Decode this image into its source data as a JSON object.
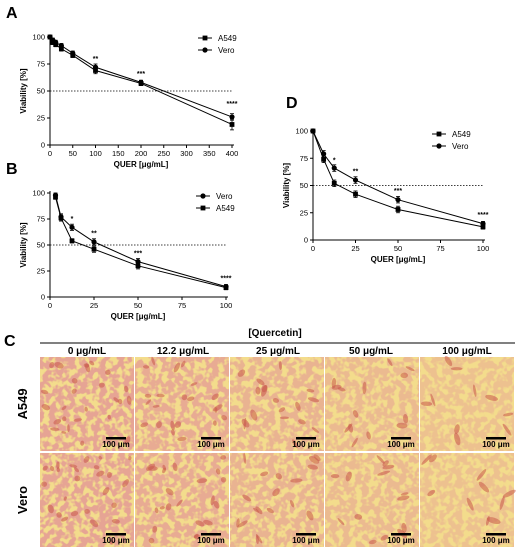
{
  "figure": {
    "panel_labels": [
      "A",
      "B",
      "C",
      "D"
    ],
    "quercetin_header": "[Quercetin]",
    "micrograph_columns": [
      "0 μg/mL",
      "12.2 μg/mL",
      "25 μg/mL",
      "50 μg/mL",
      "100 μg/mL"
    ],
    "micrograph_rows": [
      "A549",
      "Vero"
    ],
    "scale_bar_label": "100 μm"
  },
  "colors": {
    "series": "#000000",
    "cell_background": "#f3dc8c",
    "cell_stain": "#c8584b"
  },
  "chart_data": [
    {
      "panel": "A",
      "type": "line",
      "xlabel": "QUER [μg/mL]",
      "ylabel": "Viability [%]",
      "xlim": [
        0,
        400
      ],
      "ylim": [
        0,
        100
      ],
      "xticks": [
        0,
        50,
        100,
        150,
        200,
        250,
        300,
        350,
        400
      ],
      "yticks": [
        0,
        25,
        50,
        75,
        100
      ],
      "reference_line": 50,
      "legend_position": "top-right",
      "series": [
        {
          "name": "A549",
          "marker": "square",
          "x": [
            0,
            6.25,
            12.5,
            25,
            50,
            100,
            200,
            400
          ],
          "y": [
            100,
            95,
            93,
            89,
            83,
            69,
            57,
            19
          ],
          "err": [
            1,
            2,
            2,
            2,
            2,
            3,
            2,
            5
          ]
        },
        {
          "name": "Vero",
          "marker": "circle",
          "x": [
            0,
            6.25,
            12.5,
            25,
            50,
            100,
            200,
            400
          ],
          "y": [
            100,
            97,
            95,
            92,
            85,
            72,
            58,
            26
          ],
          "err": [
            1,
            2,
            2,
            2,
            2,
            3,
            2,
            3
          ]
        }
      ],
      "annotations": [
        {
          "x": 100,
          "y": 78,
          "text": "**"
        },
        {
          "x": 200,
          "y": 64,
          "text": "***"
        },
        {
          "x": 400,
          "y": 36,
          "text": "****"
        }
      ]
    },
    {
      "panel": "B",
      "type": "line",
      "xlabel": "QUER [μg/mL]",
      "ylabel": "Viability [%]",
      "xlim": [
        0,
        100
      ],
      "ylim": [
        0,
        100
      ],
      "xticks": [
        0,
        25,
        50,
        75,
        100
      ],
      "yticks": [
        0,
        25,
        50,
        75,
        100
      ],
      "reference_line": 50,
      "legend_position": "top-right",
      "series": [
        {
          "name": "Vero",
          "marker": "circle",
          "x": [
            3.125,
            6.25,
            12.5,
            25,
            50,
            100
          ],
          "y": [
            98,
            77,
            67,
            53,
            34,
            10
          ],
          "err": [
            2,
            3,
            3,
            3,
            3,
            2
          ]
        },
        {
          "name": "A549",
          "marker": "square",
          "x": [
            3.125,
            6.25,
            12.5,
            25,
            50,
            100
          ],
          "y": [
            96,
            76,
            54,
            46,
            30,
            9
          ],
          "err": [
            2,
            3,
            2,
            3,
            3,
            2
          ]
        }
      ],
      "annotations": [
        {
          "x": 12.5,
          "y": 73,
          "text": "*"
        },
        {
          "x": 25,
          "y": 59,
          "text": "**"
        },
        {
          "x": 50,
          "y": 40,
          "text": "***"
        },
        {
          "x": 100,
          "y": 16,
          "text": "****"
        }
      ]
    },
    {
      "panel": "D",
      "type": "line",
      "xlabel": "QUER [μg/mL]",
      "ylabel": "Viability [%]",
      "xlim": [
        0,
        100
      ],
      "ylim": [
        0,
        100
      ],
      "xticks": [
        0,
        25,
        50,
        75,
        100
      ],
      "yticks": [
        0,
        25,
        50,
        75,
        100
      ],
      "reference_line": 50,
      "legend_position": "top-right",
      "series": [
        {
          "name": "A549",
          "marker": "square",
          "x": [
            0,
            6.25,
            12.5,
            25,
            50,
            100
          ],
          "y": [
            100,
            74,
            52,
            42,
            28,
            12
          ],
          "err": [
            1,
            3,
            3,
            3,
            3,
            2
          ]
        },
        {
          "name": "Vero",
          "marker": "circle",
          "x": [
            0,
            6.25,
            12.5,
            25,
            50,
            100
          ],
          "y": [
            100,
            79,
            66,
            55,
            37,
            15
          ],
          "err": [
            1,
            3,
            3,
            3,
            3,
            2
          ]
        }
      ],
      "annotations": [
        {
          "x": 12.5,
          "y": 71,
          "text": "*"
        },
        {
          "x": 25,
          "y": 61,
          "text": "**"
        },
        {
          "x": 50,
          "y": 43,
          "text": "***"
        },
        {
          "x": 100,
          "y": 21,
          "text": "****"
        }
      ]
    }
  ]
}
